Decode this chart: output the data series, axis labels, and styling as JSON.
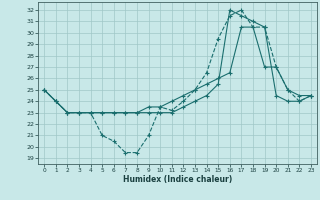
{
  "xlabel": "Humidex (Indice chaleur)",
  "background_color": "#c8e8e8",
  "grid_color": "#a0c8c8",
  "line_color": "#1a6e6e",
  "xlim": [
    -0.5,
    23.5
  ],
  "ylim": [
    18.5,
    32.7
  ],
  "yticks": [
    19,
    20,
    21,
    22,
    23,
    24,
    25,
    26,
    27,
    28,
    29,
    30,
    31,
    32
  ],
  "xticks": [
    0,
    1,
    2,
    3,
    4,
    5,
    6,
    7,
    8,
    9,
    10,
    11,
    12,
    13,
    14,
    15,
    16,
    17,
    18,
    19,
    20,
    21,
    22,
    23
  ],
  "series": [
    {
      "x": [
        0,
        1,
        2,
        3,
        4,
        5,
        6,
        7,
        8,
        9,
        10,
        11,
        12,
        13,
        14,
        15,
        16,
        17,
        18,
        19,
        20,
        21,
        22,
        23
      ],
      "y": [
        25.0,
        24.0,
        23.0,
        23.0,
        23.0,
        21.0,
        20.5,
        19.5,
        19.5,
        21.0,
        23.5,
        23.2,
        24.0,
        25.0,
        26.5,
        29.5,
        31.5,
        32.0,
        30.5,
        30.5,
        27.0,
        25.0,
        24.0,
        24.5
      ],
      "style": "--",
      "marker": "+",
      "markersize": 3
    },
    {
      "x": [
        0,
        1,
        2,
        3,
        4,
        5,
        6,
        7,
        8,
        9,
        10,
        11,
        12,
        13,
        14,
        15,
        16,
        17,
        18,
        19,
        20,
        21,
        22,
        23
      ],
      "y": [
        25.0,
        24.0,
        23.0,
        23.0,
        23.0,
        23.0,
        23.0,
        23.0,
        23.0,
        23.5,
        23.5,
        24.0,
        24.5,
        25.0,
        25.5,
        26.0,
        26.5,
        30.5,
        30.5,
        27.0,
        27.0,
        25.0,
        24.5,
        24.5
      ],
      "style": "-",
      "marker": "+",
      "markersize": 3
    },
    {
      "x": [
        0,
        1,
        2,
        3,
        4,
        5,
        6,
        7,
        8,
        9,
        10,
        11,
        12,
        13,
        14,
        15,
        16,
        17,
        18,
        19,
        20,
        21,
        22,
        23
      ],
      "y": [
        25.0,
        24.0,
        23.0,
        23.0,
        23.0,
        23.0,
        23.0,
        23.0,
        23.0,
        23.0,
        23.0,
        23.0,
        23.5,
        24.0,
        24.5,
        25.5,
        32.0,
        31.5,
        31.0,
        30.5,
        24.5,
        24.0,
        24.0,
        24.5
      ],
      "style": "-",
      "marker": "+",
      "markersize": 3
    }
  ]
}
